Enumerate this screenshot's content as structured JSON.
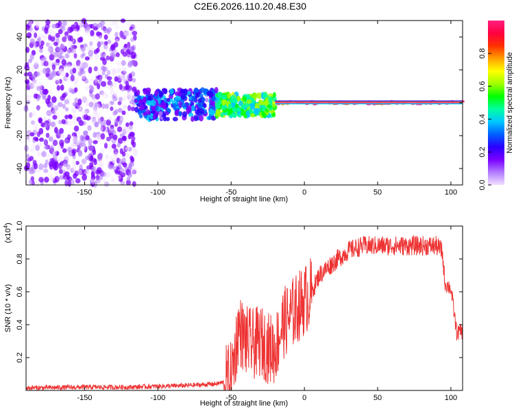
{
  "title": "C2E6.2026.110.20.48.E30",
  "chart_data": [
    {
      "type": "heatmap",
      "title": "C2E6.2026.110.20.48.E30",
      "xlabel": "Height of straight line (km)",
      "ylabel": "Frequency (Hz)",
      "xlim": [
        -190,
        108
      ],
      "ylim": [
        -50,
        50
      ],
      "x_ticks": [
        -150,
        -100,
        -50,
        0,
        50,
        100
      ],
      "y_ticks": [
        -40,
        -20,
        0,
        20,
        40
      ],
      "colorbar": {
        "label": "Normalized spectral amplitude",
        "range": [
          0,
          1
        ],
        "ticks": [
          0.0,
          0.2,
          0.4,
          0.6,
          0.8
        ],
        "colors": [
          "#f2e0ff",
          "#b27bff",
          "#7a00ff",
          "#2a00ff",
          "#0060ff",
          "#00c8ff",
          "#00ffa0",
          "#00ff00",
          "#a0ff00",
          "#ffff00",
          "#ffa000",
          "#ff3000",
          "#ff0040",
          "#ff2080"
        ]
      },
      "regions": [
        {
          "x_range": [
            -190,
            -115
          ],
          "y_range": [
            -50,
            50
          ],
          "level": 0.12,
          "note": "scattered noise"
        },
        {
          "x_range": [
            -115,
            -60
          ],
          "y_range": [
            -10,
            8
          ],
          "level": 0.3
        },
        {
          "x_range": [
            -60,
            -20
          ],
          "y_range": [
            -8,
            5
          ],
          "level": 0.55
        },
        {
          "x_range": [
            -20,
            108
          ],
          "y_range": [
            -1,
            1
          ],
          "level": 0.95,
          "note": "narrow line near 0 Hz"
        }
      ]
    },
    {
      "type": "line",
      "xlabel": "Height of straight line (km)",
      "ylabel": "SNR (10 * v/v)",
      "y_multiplier": "(x10^4)",
      "y_multiplier_base": "(x10",
      "y_multiplier_exp": "4",
      "y_multiplier_close": ")",
      "xlim": [
        -190,
        108
      ],
      "ylim": [
        0,
        1.0
      ],
      "x_ticks": [
        -150,
        -100,
        -50,
        0,
        50,
        100
      ],
      "y_ticks": [
        0.2,
        0.4,
        0.6,
        0.8,
        1.0
      ],
      "color": "#ee3333",
      "series": [
        {
          "x": [
            -190,
            -150,
            -120,
            -100,
            -80,
            -60,
            -55,
            -50,
            -47,
            -45,
            -40,
            -35,
            -30,
            -25,
            -20,
            -15,
            -10,
            -5,
            0,
            5,
            10,
            20,
            30,
            40,
            50,
            60,
            70,
            80,
            90,
            94,
            96,
            100,
            104,
            108
          ],
          "values": [
            0.015,
            0.02,
            0.02,
            0.025,
            0.03,
            0.04,
            0.05,
            0.08,
            0.25,
            0.38,
            0.3,
            0.28,
            0.3,
            0.26,
            0.25,
            0.4,
            0.45,
            0.5,
            0.55,
            0.6,
            0.7,
            0.78,
            0.85,
            0.88,
            0.88,
            0.88,
            0.88,
            0.88,
            0.88,
            0.85,
            0.65,
            0.62,
            0.35,
            0.36
          ]
        }
      ]
    }
  ]
}
